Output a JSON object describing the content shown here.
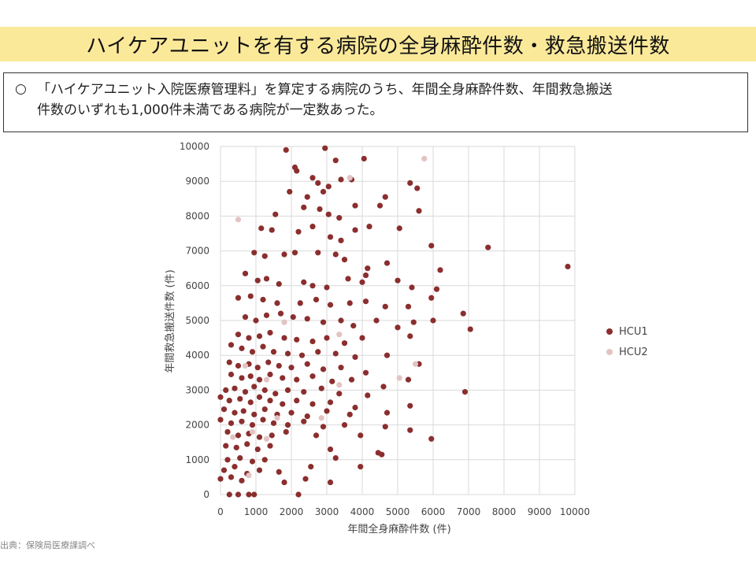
{
  "slide": {
    "title": "ハイケアユニットを有する病院の全身麻酔件数・救急搬送件数",
    "summary_bullet": "○",
    "summary_line1": "「ハイケアユニット入院医療管理料」を算定する病院のうち、年間全身麻酔件数、年間救急搬送",
    "summary_line2": "件数のいずれも1,000件未満である病院が一定数あった。",
    "footnote": "出典：保険局医療課調べ",
    "colors": {
      "title_band": "#fbe99a",
      "hcu1": "#8b2e2e",
      "hcu2": "#e3c3c3",
      "grid": "#d9d9d9"
    }
  },
  "chart_data": {
    "type": "scatter",
    "xlabel": "年間全身麻酔件数 (件)",
    "ylabel": "年間救急搬送件数 (件)",
    "xlim": [
      0,
      10000
    ],
    "ylim": [
      0,
      10000
    ],
    "xticks": [
      0,
      1000,
      2000,
      3000,
      4000,
      5000,
      6000,
      7000,
      8000,
      9000,
      10000
    ],
    "yticks": [
      0,
      1000,
      2000,
      3000,
      4000,
      5000,
      6000,
      7000,
      8000,
      9000,
      10000
    ],
    "grid": true,
    "legend_position": "right",
    "series": [
      {
        "name": "HCU1",
        "color": "#8b2e2e",
        "points": [
          [
            1850,
            9900
          ],
          [
            2950,
            9950
          ],
          [
            4050,
            9650
          ],
          [
            2100,
            9400
          ],
          [
            2150,
            9300
          ],
          [
            3250,
            9600
          ],
          [
            2600,
            9100
          ],
          [
            2750,
            8950
          ],
          [
            3050,
            8850
          ],
          [
            3400,
            9050
          ],
          [
            3700,
            9050
          ],
          [
            5350,
            8950
          ],
          [
            5550,
            8800
          ],
          [
            1950,
            8700
          ],
          [
            2450,
            8550
          ],
          [
            2900,
            8700
          ],
          [
            4650,
            8550
          ],
          [
            1550,
            8050
          ],
          [
            3800,
            8300
          ],
          [
            4500,
            8300
          ],
          [
            5600,
            8150
          ],
          [
            2350,
            8250
          ],
          [
            2800,
            8200
          ],
          [
            3050,
            8050
          ],
          [
            3350,
            7950
          ],
          [
            1150,
            7650
          ],
          [
            1450,
            7600
          ],
          [
            2600,
            7700
          ],
          [
            4200,
            7700
          ],
          [
            5050,
            7650
          ],
          [
            2200,
            7550
          ],
          [
            3100,
            7400
          ],
          [
            3400,
            7300
          ],
          [
            3800,
            7600
          ],
          [
            5950,
            7150
          ],
          [
            7550,
            7100
          ],
          [
            950,
            6950
          ],
          [
            1250,
            6850
          ],
          [
            1800,
            6900
          ],
          [
            2100,
            6950
          ],
          [
            2750,
            6950
          ],
          [
            3250,
            6900
          ],
          [
            3500,
            6750
          ],
          [
            4150,
            6500
          ],
          [
            4100,
            6300
          ],
          [
            4700,
            6650
          ],
          [
            6200,
            6450
          ],
          [
            9800,
            6550
          ],
          [
            700,
            6350
          ],
          [
            1050,
            6150
          ],
          [
            1300,
            6200
          ],
          [
            1650,
            6050
          ],
          [
            2350,
            6100
          ],
          [
            2600,
            6000
          ],
          [
            3000,
            5950
          ],
          [
            3600,
            6200
          ],
          [
            4000,
            6100
          ],
          [
            5000,
            6150
          ],
          [
            5400,
            5950
          ],
          [
            6100,
            5900
          ],
          [
            500,
            5650
          ],
          [
            850,
            5700
          ],
          [
            1200,
            5600
          ],
          [
            1600,
            5500
          ],
          [
            2250,
            5500
          ],
          [
            2700,
            5600
          ],
          [
            3100,
            5450
          ],
          [
            3650,
            5500
          ],
          [
            4100,
            5550
          ],
          [
            4650,
            5400
          ],
          [
            5300,
            5400
          ],
          [
            5950,
            5650
          ],
          [
            700,
            5100
          ],
          [
            1000,
            5000
          ],
          [
            1300,
            5150
          ],
          [
            1700,
            5200
          ],
          [
            2050,
            5100
          ],
          [
            2450,
            5050
          ],
          [
            2900,
            4950
          ],
          [
            3400,
            5000
          ],
          [
            3750,
            4850
          ],
          [
            4400,
            5000
          ],
          [
            5000,
            4800
          ],
          [
            5450,
            4950
          ],
          [
            6000,
            5000
          ],
          [
            6850,
            5200
          ],
          [
            7050,
            4750
          ],
          [
            500,
            4600
          ],
          [
            800,
            4500
          ],
          [
            1100,
            4550
          ],
          [
            1400,
            4650
          ],
          [
            1800,
            4500
          ],
          [
            2150,
            4450
          ],
          [
            2600,
            4400
          ],
          [
            3000,
            4500
          ],
          [
            3500,
            4350
          ],
          [
            4000,
            4500
          ],
          [
            5350,
            4550
          ],
          [
            300,
            4300
          ],
          [
            600,
            4200
          ],
          [
            900,
            4100
          ],
          [
            1200,
            4250
          ],
          [
            1500,
            4100
          ],
          [
            1900,
            4050
          ],
          [
            2300,
            4000
          ],
          [
            2750,
            4100
          ],
          [
            3250,
            4050
          ],
          [
            3800,
            3950
          ],
          [
            4700,
            4000
          ],
          [
            250,
            3800
          ],
          [
            500,
            3700
          ],
          [
            800,
            3750
          ],
          [
            1050,
            3650
          ],
          [
            1350,
            3800
          ],
          [
            1650,
            3700
          ],
          [
            2000,
            3650
          ],
          [
            2450,
            3750
          ],
          [
            2900,
            3600
          ],
          [
            3400,
            3650
          ],
          [
            4100,
            3500
          ],
          [
            5600,
            3750
          ],
          [
            300,
            3450
          ],
          [
            600,
            3350
          ],
          [
            850,
            3400
          ],
          [
            1100,
            3300
          ],
          [
            1400,
            3450
          ],
          [
            1750,
            3350
          ],
          [
            2150,
            3300
          ],
          [
            2600,
            3400
          ],
          [
            3150,
            3250
          ],
          [
            3700,
            3300
          ],
          [
            4600,
            3100
          ],
          [
            5300,
            3300
          ],
          [
            150,
            3000
          ],
          [
            400,
            3050
          ],
          [
            700,
            2950
          ],
          [
            950,
            3100
          ],
          [
            1250,
            3000
          ],
          [
            1550,
            2900
          ],
          [
            1900,
            3000
          ],
          [
            2350,
            2950
          ],
          [
            2850,
            3050
          ],
          [
            3350,
            2900
          ],
          [
            4150,
            2850
          ],
          [
            6900,
            2950
          ],
          [
            0,
            2800
          ],
          [
            250,
            2700
          ],
          [
            550,
            2750
          ],
          [
            850,
            2650
          ],
          [
            1100,
            2800
          ],
          [
            1400,
            2700
          ],
          [
            1750,
            2600
          ],
          [
            2150,
            2700
          ],
          [
            2600,
            2600
          ],
          [
            3100,
            2650
          ],
          [
            3800,
            2500
          ],
          [
            5350,
            2550
          ],
          [
            100,
            2450
          ],
          [
            400,
            2350
          ],
          [
            650,
            2400
          ],
          [
            950,
            2300
          ],
          [
            1250,
            2450
          ],
          [
            1600,
            2300
          ],
          [
            2000,
            2350
          ],
          [
            2450,
            2250
          ],
          [
            3000,
            2400
          ],
          [
            3650,
            2300
          ],
          [
            4700,
            2350
          ],
          [
            0,
            2150
          ],
          [
            300,
            2050
          ],
          [
            600,
            2100
          ],
          [
            900,
            2000
          ],
          [
            1200,
            2150
          ],
          [
            1500,
            2050
          ],
          [
            1900,
            2000
          ],
          [
            2350,
            2100
          ],
          [
            2900,
            1950
          ],
          [
            3500,
            2000
          ],
          [
            4650,
            1950
          ],
          [
            5350,
            1850
          ],
          [
            200,
            1800
          ],
          [
            500,
            1700
          ],
          [
            800,
            1750
          ],
          [
            1100,
            1650
          ],
          [
            1450,
            1700
          ],
          [
            1850,
            1800
          ],
          [
            2700,
            1700
          ],
          [
            3950,
            1700
          ],
          [
            5950,
            1600
          ],
          [
            150,
            1400
          ],
          [
            450,
            1350
          ],
          [
            750,
            1450
          ],
          [
            1050,
            1300
          ],
          [
            1400,
            1400
          ],
          [
            3100,
            1300
          ],
          [
            4450,
            1200
          ],
          [
            4550,
            1150
          ],
          [
            200,
            1000
          ],
          [
            550,
            1050
          ],
          [
            900,
            950
          ],
          [
            1250,
            1000
          ],
          [
            3250,
            1050
          ],
          [
            100,
            700
          ],
          [
            400,
            800
          ],
          [
            750,
            600
          ],
          [
            1100,
            700
          ],
          [
            1650,
            650
          ],
          [
            2550,
            800
          ],
          [
            3950,
            800
          ],
          [
            0,
            450
          ],
          [
            300,
            500
          ],
          [
            600,
            400
          ],
          [
            1800,
            350
          ],
          [
            2400,
            450
          ],
          [
            3100,
            350
          ],
          [
            250,
            0
          ],
          [
            500,
            0
          ],
          [
            800,
            0
          ],
          [
            950,
            0
          ],
          [
            2200,
            0
          ]
        ]
      },
      {
        "name": "HCU2",
        "color": "#e3c3c3",
        "points": [
          [
            5750,
            9650
          ],
          [
            3650,
            9100
          ],
          [
            500,
            7900
          ],
          [
            1800,
            4950
          ],
          [
            3350,
            4600
          ],
          [
            700,
            3700
          ],
          [
            1300,
            3300
          ],
          [
            3350,
            3150
          ],
          [
            5050,
            3350
          ],
          [
            5500,
            3750
          ],
          [
            1600,
            2200
          ],
          [
            2850,
            2200
          ],
          [
            350,
            1650
          ],
          [
            900,
            1800
          ],
          [
            1300,
            1600
          ],
          [
            800,
            550
          ]
        ]
      }
    ]
  }
}
